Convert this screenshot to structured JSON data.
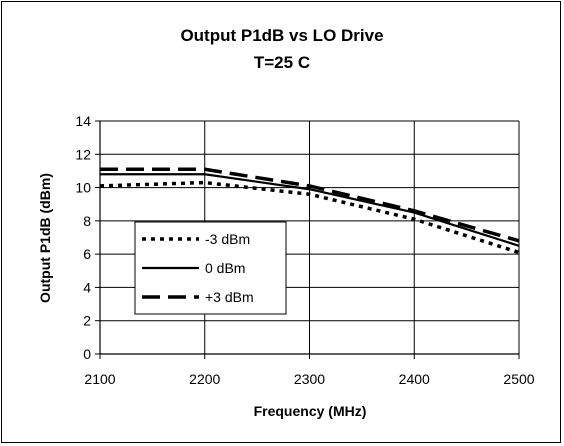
{
  "chart_data": {
    "type": "line",
    "title": "Output P1dB vs LO Drive",
    "subtitle": "T=25 C",
    "xlabel": "Frequency (MHz)",
    "ylabel": "Output P1dB (dBm)",
    "xlim": [
      2100,
      2500
    ],
    "ylim": [
      0,
      14
    ],
    "xticks": [
      2100,
      2200,
      2300,
      2400,
      2500
    ],
    "yticks": [
      0,
      2,
      4,
      6,
      8,
      10,
      12,
      14
    ],
    "grid": true,
    "legend_position": "left-middle",
    "series": [
      {
        "name": "-3 dBm",
        "style": "dotted",
        "color": "#000000",
        "x": [
          2100,
          2200,
          2300,
          2400,
          2500
        ],
        "y": [
          10.1,
          10.3,
          9.6,
          8.1,
          6.1
        ]
      },
      {
        "name": "0 dBm",
        "style": "solid",
        "color": "#000000",
        "x": [
          2100,
          2200,
          2300,
          2400,
          2500
        ],
        "y": [
          10.8,
          10.8,
          9.9,
          8.5,
          6.5
        ]
      },
      {
        "name": "+3 dBm",
        "style": "dashed",
        "color": "#000000",
        "x": [
          2100,
          2200,
          2300,
          2400,
          2500
        ],
        "y": [
          11.1,
          11.1,
          10.1,
          8.6,
          6.8
        ]
      }
    ]
  }
}
